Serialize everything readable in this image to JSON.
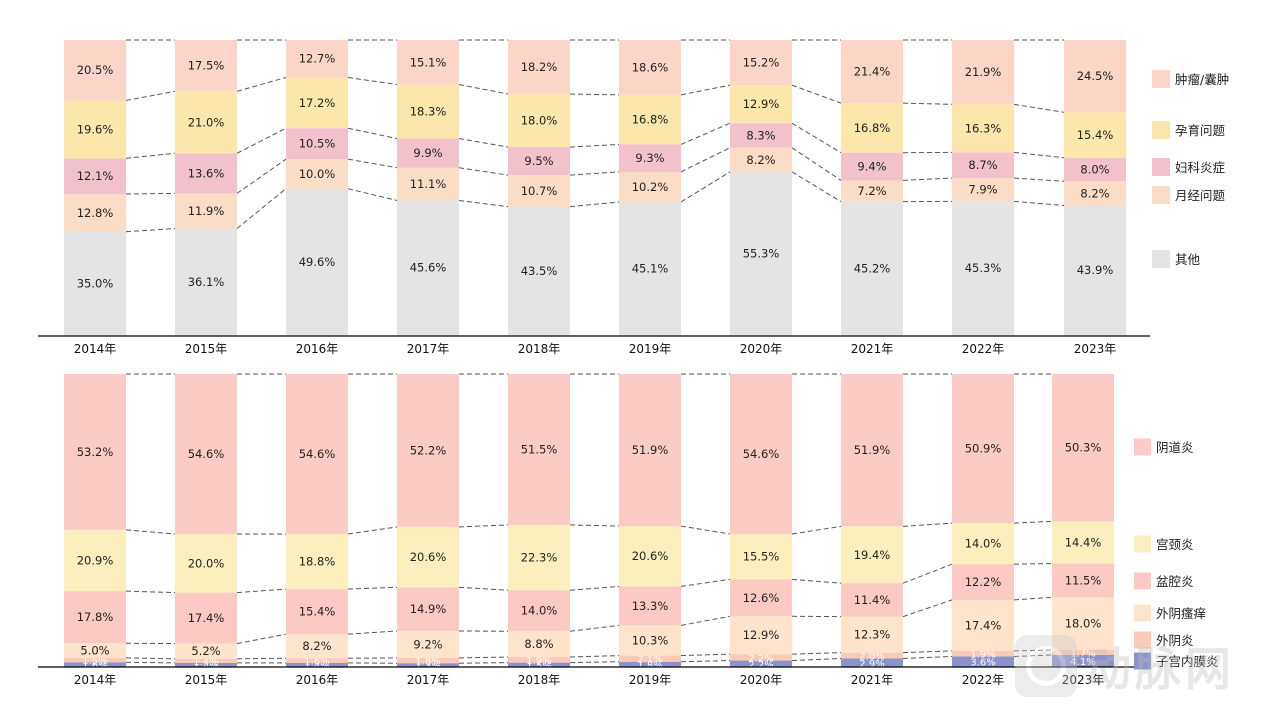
{
  "chart_data": [
    {
      "type": "stacked-bar-100",
      "categories": [
        "2014年",
        "2015年",
        "2016年",
        "2017年",
        "2018年",
        "2019年",
        "2020年",
        "2021年",
        "2022年",
        "2023年"
      ],
      "series": [
        {
          "name": "其他",
          "color": "#e4e4e4",
          "values": [
            35.0,
            36.1,
            49.6,
            45.6,
            43.5,
            45.1,
            55.3,
            45.2,
            45.3,
            43.9
          ]
        },
        {
          "name": "月经问题",
          "color": "#fbdcc4",
          "values": [
            12.8,
            11.9,
            10.0,
            11.1,
            10.7,
            10.2,
            8.2,
            7.2,
            7.9,
            8.2
          ]
        },
        {
          "name": "妇科炎症",
          "color": "#f3c1cc",
          "values": [
            12.1,
            13.6,
            10.5,
            9.9,
            9.5,
            9.3,
            8.3,
            9.4,
            8.7,
            8.0
          ]
        },
        {
          "name": "孕育问题",
          "color": "#fbe7ac",
          "values": [
            19.6,
            21.0,
            17.2,
            18.3,
            18.0,
            16.8,
            12.9,
            16.8,
            16.3,
            15.4
          ]
        },
        {
          "name": "肿瘤/囊肿",
          "color": "#fad5c8",
          "values": [
            20.5,
            17.5,
            12.7,
            15.1,
            18.2,
            18.6,
            15.2,
            21.4,
            21.9,
            24.5
          ]
        }
      ],
      "legend_order": [
        "肿瘤/囊肿",
        "孕育问题",
        "妇科炎症",
        "月经问题",
        "其他"
      ]
    },
    {
      "type": "stacked-bar-100",
      "categories": [
        "2014年",
        "2015年",
        "2016年",
        "2017年",
        "2018年",
        "2019年",
        "2020年",
        "2021年",
        "2022年",
        "2023年"
      ],
      "series": [
        {
          "name": "子宫内膜炎",
          "color": "#8b93cb",
          "values": [
            1.6,
            1.4,
            1.4,
            1.3,
            1.5,
            1.8,
            2.2,
            2.9,
            3.6,
            4.1
          ]
        },
        {
          "name": "外阴炎",
          "color": "#fdc9b7",
          "values": [
            1.5,
            1.4,
            1.6,
            1.8,
            1.9,
            2.1,
            2.2,
            2.0,
            1.9,
            1.7
          ]
        },
        {
          "name": "外阴瘙痒",
          "color": "#fde4cb",
          "values": [
            5.0,
            5.2,
            8.2,
            9.2,
            8.8,
            10.3,
            12.9,
            12.3,
            17.4,
            18.0
          ]
        },
        {
          "name": "盆腔炎",
          "color": "#fcc9c4",
          "values": [
            17.8,
            17.4,
            15.4,
            14.9,
            14.0,
            13.3,
            12.6,
            11.4,
            12.2,
            11.5
          ]
        },
        {
          "name": "宫颈炎",
          "color": "#fbefbd",
          "values": [
            20.9,
            20.0,
            18.8,
            20.6,
            22.3,
            20.6,
            15.5,
            19.4,
            14.0,
            14.4
          ]
        },
        {
          "name": "阴道炎",
          "color": "#fdcbc5",
          "values": [
            53.2,
            54.6,
            54.6,
            52.2,
            51.5,
            51.9,
            54.6,
            51.9,
            50.9,
            50.3
          ]
        }
      ],
      "legend_order": [
        "阴道炎",
        "宫颈炎",
        "盆腔炎",
        "外阴瘙痒",
        "外阴炎",
        "子宫内膜炎"
      ]
    }
  ],
  "watermark": {
    "text": "动脉网"
  }
}
